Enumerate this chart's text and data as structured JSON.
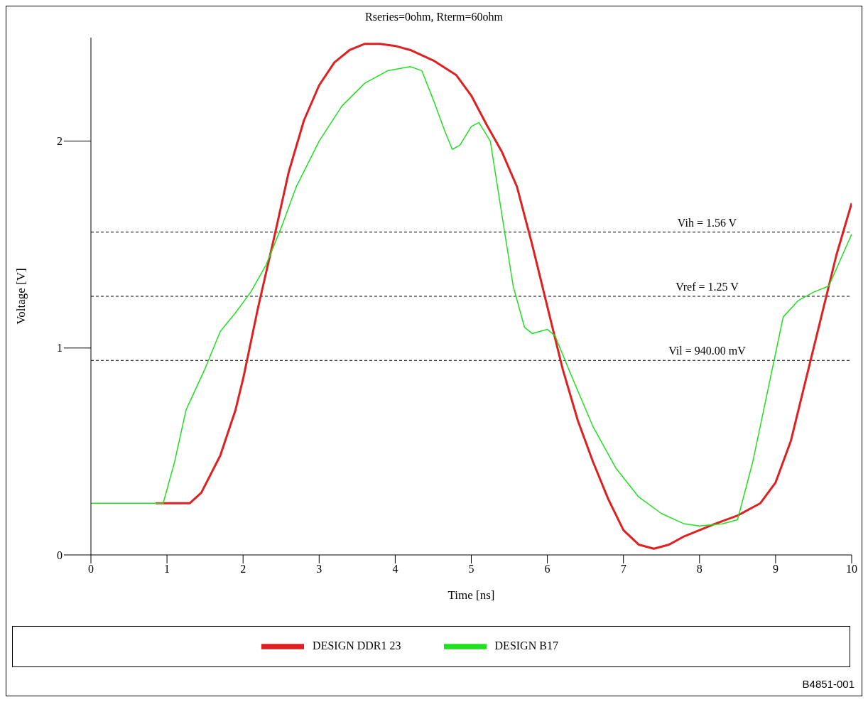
{
  "chart_data": {
    "type": "line",
    "title": "Rseries=0ohm, Rterm=60ohm",
    "xlabel": "Time [ns]",
    "ylabel": "Voltage [V]",
    "xlim": [
      0,
      10
    ],
    "xticks": [
      0,
      1,
      2,
      3,
      4,
      5,
      6,
      7,
      8,
      9,
      10
    ],
    "ylim": [
      0,
      2.5
    ],
    "yticks": [
      0,
      1,
      2
    ],
    "grid": false,
    "legend": "bottom",
    "marker": "none",
    "line_style": "solid",
    "series": [
      {
        "name": "DESIGN DDR1 23",
        "color": "#e02020",
        "x": [
          0.85,
          1.3,
          1.45,
          1.7,
          1.9,
          2.0,
          2.2,
          2.4,
          2.6,
          2.8,
          3.0,
          3.2,
          3.4,
          3.6,
          3.8,
          4.0,
          4.2,
          4.5,
          4.8,
          5.0,
          5.2,
          5.4,
          5.6,
          5.8,
          6.0,
          6.2,
          6.4,
          6.6,
          6.8,
          7.0,
          7.2,
          7.4,
          7.6,
          7.8,
          8.0,
          8.2,
          8.5,
          8.8,
          9.0,
          9.2,
          9.4,
          9.6,
          9.8,
          10
        ],
        "values": [
          0.25,
          0.25,
          0.3,
          0.48,
          0.7,
          0.85,
          1.2,
          1.52,
          1.85,
          2.1,
          2.27,
          2.38,
          2.44,
          2.47,
          2.47,
          2.46,
          2.44,
          2.39,
          2.32,
          2.22,
          2.08,
          1.95,
          1.78,
          1.5,
          1.2,
          0.9,
          0.65,
          0.45,
          0.27,
          0.12,
          0.05,
          0.03,
          0.05,
          0.09,
          0.12,
          0.15,
          0.19,
          0.25,
          0.35,
          0.55,
          0.85,
          1.15,
          1.45,
          1.7
        ]
      },
      {
        "name": "DESIGN B17",
        "color": "#20e020",
        "x": [
          0,
          0.95,
          1.1,
          1.25,
          1.5,
          1.7,
          1.9,
          2.1,
          2.3,
          2.5,
          2.7,
          3.0,
          3.3,
          3.6,
          3.9,
          4.2,
          4.35,
          4.5,
          4.65,
          4.75,
          4.85,
          5.0,
          5.1,
          5.25,
          5.4,
          5.55,
          5.7,
          5.8,
          6.0,
          6.1,
          6.3,
          6.6,
          6.9,
          7.2,
          7.5,
          7.8,
          8.0,
          8.3,
          8.5,
          8.7,
          8.9,
          9.1,
          9.3,
          9.5,
          9.7,
          10
        ],
        "values": [
          0.25,
          0.25,
          0.45,
          0.7,
          0.9,
          1.08,
          1.17,
          1.27,
          1.4,
          1.58,
          1.78,
          2.0,
          2.17,
          2.28,
          2.34,
          2.36,
          2.34,
          2.2,
          2.05,
          1.96,
          1.98,
          2.07,
          2.09,
          2.0,
          1.65,
          1.3,
          1.1,
          1.07,
          1.09,
          1.06,
          0.88,
          0.62,
          0.42,
          0.28,
          0.2,
          0.15,
          0.14,
          0.15,
          0.17,
          0.45,
          0.8,
          1.15,
          1.23,
          1.27,
          1.3,
          1.55
        ]
      }
    ],
    "ref_lines": [
      {
        "axis": "y",
        "value": 1.56,
        "label": "Vih = 1.56 V",
        "color": "#000000",
        "line_style": "dashed"
      },
      {
        "axis": "y",
        "value": 1.25,
        "label": "Vref = 1.25 V",
        "color": "#000000",
        "line_style": "dashed"
      },
      {
        "axis": "y",
        "value": 0.94,
        "label": "Vil = 940.00 mV",
        "color": "#000000",
        "line_style": "dashed"
      }
    ],
    "annotations": [
      "B4851-001"
    ]
  }
}
